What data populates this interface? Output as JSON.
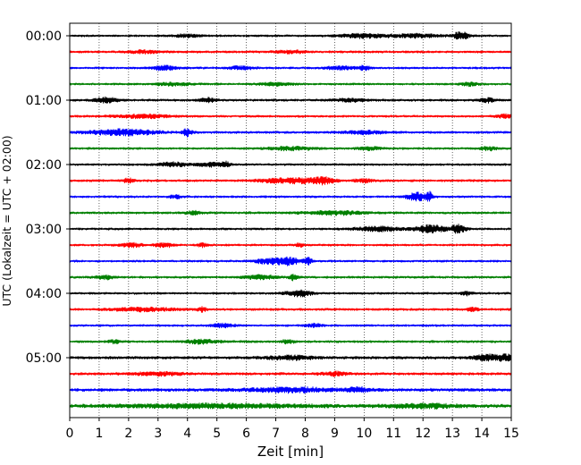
{
  "chart_data": {
    "type": "line",
    "title": "",
    "xlabel": "Zeit  [min]",
    "ylabel": "UTC (Lokalzeit = UTC + 02:00)",
    "xlim": [
      0,
      15
    ],
    "x_ticks": [
      0,
      1,
      2,
      3,
      4,
      5,
      6,
      7,
      8,
      9,
      10,
      11,
      12,
      13,
      14,
      15
    ],
    "y_ticks": [
      {
        "row": 0,
        "label": "00:00"
      },
      {
        "row": 4,
        "label": "01:00"
      },
      {
        "row": 8,
        "label": "02:00"
      },
      {
        "row": 12,
        "label": "03:00"
      },
      {
        "row": 16,
        "label": "04:00"
      },
      {
        "row": 20,
        "label": "05:00"
      }
    ],
    "grid": "vertical-dotted",
    "legend": "none",
    "color_cycle": [
      "#000000",
      "#ff0000",
      "#0000ff",
      "#008000"
    ],
    "series": [
      {
        "start": "00:00",
        "color": "#000000",
        "base": 1.3,
        "bursts": [
          {
            "t": 4,
            "a": 1.8,
            "w": 0.4
          },
          {
            "t": 10,
            "a": 2.2,
            "w": 0.8
          },
          {
            "t": 11.8,
            "a": 1.8,
            "w": 0.8
          },
          {
            "t": 13.3,
            "a": 4.5,
            "w": 0.25
          }
        ]
      },
      {
        "start": "00:15",
        "color": "#ff0000",
        "base": 1.4,
        "bursts": [
          {
            "t": 2.5,
            "a": 1.5,
            "w": 0.5
          },
          {
            "t": 7.5,
            "a": 1.5,
            "w": 0.5
          }
        ]
      },
      {
        "start": "00:30",
        "color": "#0000ff",
        "base": 1.3,
        "bursts": [
          {
            "t": 3.2,
            "a": 2.5,
            "w": 0.4
          },
          {
            "t": 5.8,
            "a": 1.8,
            "w": 0.4
          },
          {
            "t": 9.2,
            "a": 1.8,
            "w": 0.5
          },
          {
            "t": 10,
            "a": 2.2,
            "w": 0.2
          }
        ]
      },
      {
        "start": "00:45",
        "color": "#008000",
        "base": 1.3,
        "bursts": [
          {
            "t": 3.5,
            "a": 1.5,
            "w": 0.6
          },
          {
            "t": 7,
            "a": 1.6,
            "w": 0.5
          },
          {
            "t": 13.6,
            "a": 1.8,
            "w": 0.3
          }
        ]
      },
      {
        "start": "01:00",
        "color": "#000000",
        "base": 1.4,
        "bursts": [
          {
            "t": 1.2,
            "a": 3,
            "w": 0.4
          },
          {
            "t": 4.7,
            "a": 2,
            "w": 0.3
          },
          {
            "t": 9.5,
            "a": 1.7,
            "w": 0.5
          },
          {
            "t": 14.2,
            "a": 2.2,
            "w": 0.3
          }
        ]
      },
      {
        "start": "01:15",
        "color": "#ff0000",
        "base": 1.3,
        "bursts": [
          {
            "t": 2.5,
            "a": 1.8,
            "w": 1
          },
          {
            "t": 14.8,
            "a": 2,
            "w": 0.3
          }
        ]
      },
      {
        "start": "01:30",
        "color": "#0000ff",
        "base": 1.4,
        "bursts": [
          {
            "t": 1.8,
            "a": 3,
            "w": 1.2
          },
          {
            "t": 4,
            "a": 4,
            "w": 0.15
          },
          {
            "t": 10,
            "a": 1.6,
            "w": 0.8
          }
        ]
      },
      {
        "start": "01:45",
        "color": "#008000",
        "base": 1.3,
        "bursts": [
          {
            "t": 7.5,
            "a": 1.8,
            "w": 0.8
          },
          {
            "t": 10.2,
            "a": 1.8,
            "w": 0.4
          },
          {
            "t": 14.2,
            "a": 2,
            "w": 0.3
          }
        ]
      },
      {
        "start": "02:00",
        "color": "#000000",
        "base": 1.3,
        "bursts": [
          {
            "t": 3.5,
            "a": 2.2,
            "w": 0.5
          },
          {
            "t": 4.8,
            "a": 2.2,
            "w": 0.5
          },
          {
            "t": 5.3,
            "a": 2.6,
            "w": 0.12
          }
        ]
      },
      {
        "start": "02:15",
        "color": "#ff0000",
        "base": 1.4,
        "bursts": [
          {
            "t": 2,
            "a": 2,
            "w": 0.2
          },
          {
            "t": 7.5,
            "a": 2.8,
            "w": 1
          },
          {
            "t": 8.6,
            "a": 3.2,
            "w": 0.4
          },
          {
            "t": 10,
            "a": 2,
            "w": 0.3
          }
        ]
      },
      {
        "start": "02:30",
        "color": "#0000ff",
        "base": 1.3,
        "bursts": [
          {
            "t": 3.6,
            "a": 1.8,
            "w": 0.2
          },
          {
            "t": 11.8,
            "a": 4.5,
            "w": 0.35
          },
          {
            "t": 12.2,
            "a": 5.5,
            "w": 0.1
          }
        ]
      },
      {
        "start": "02:45",
        "color": "#008000",
        "base": 1.4,
        "bursts": [
          {
            "t": 4.2,
            "a": 1.6,
            "w": 0.3
          },
          {
            "t": 9,
            "a": 2,
            "w": 1
          }
        ]
      },
      {
        "start": "03:00",
        "color": "#000000",
        "base": 1.3,
        "bursts": [
          {
            "t": 10.5,
            "a": 2.5,
            "w": 0.8
          },
          {
            "t": 12.3,
            "a": 4,
            "w": 0.5
          },
          {
            "t": 13.2,
            "a": 4.2,
            "w": 0.25
          }
        ]
      },
      {
        "start": "03:15",
        "color": "#ff0000",
        "base": 1.3,
        "bursts": [
          {
            "t": 2.1,
            "a": 2,
            "w": 0.4
          },
          {
            "t": 3.2,
            "a": 2.5,
            "w": 0.3
          },
          {
            "t": 4.5,
            "a": 2.2,
            "w": 0.15
          },
          {
            "t": 7.8,
            "a": 2,
            "w": 0.15
          }
        ]
      },
      {
        "start": "03:30",
        "color": "#0000ff",
        "base": 1.3,
        "bursts": [
          {
            "t": 6.7,
            "a": 2.8,
            "w": 0.4
          },
          {
            "t": 7.4,
            "a": 4.2,
            "w": 0.4
          },
          {
            "t": 8.1,
            "a": 4.8,
            "w": 0.12
          }
        ]
      },
      {
        "start": "03:45",
        "color": "#008000",
        "base": 1.4,
        "bursts": [
          {
            "t": 1.2,
            "a": 2,
            "w": 0.3
          },
          {
            "t": 6.5,
            "a": 2.6,
            "w": 0.5
          },
          {
            "t": 7.6,
            "a": 3,
            "w": 0.15
          }
        ]
      },
      {
        "start": "04:00",
        "color": "#000000",
        "base": 1.3,
        "bursts": [
          {
            "t": 7.8,
            "a": 3.5,
            "w": 0.45
          },
          {
            "t": 13.5,
            "a": 1.8,
            "w": 0.2
          }
        ]
      },
      {
        "start": "04:15",
        "color": "#ff0000",
        "base": 1.4,
        "bursts": [
          {
            "t": 2.5,
            "a": 2,
            "w": 1
          },
          {
            "t": 4.5,
            "a": 2.5,
            "w": 0.15
          },
          {
            "t": 13.7,
            "a": 1.8,
            "w": 0.2
          }
        ]
      },
      {
        "start": "04:30",
        "color": "#0000ff",
        "base": 1.3,
        "bursts": [
          {
            "t": 5.2,
            "a": 2,
            "w": 0.4
          },
          {
            "t": 8.3,
            "a": 1.8,
            "w": 0.3
          }
        ]
      },
      {
        "start": "04:45",
        "color": "#008000",
        "base": 1.4,
        "bursts": [
          {
            "t": 1.5,
            "a": 1.8,
            "w": 0.2
          },
          {
            "t": 4.5,
            "a": 2,
            "w": 0.6
          },
          {
            "t": 7.4,
            "a": 2.2,
            "w": 0.2
          }
        ]
      },
      {
        "start": "05:00",
        "color": "#000000",
        "base": 1.7,
        "bursts": [
          {
            "t": 7.5,
            "a": 2,
            "w": 0.8
          },
          {
            "t": 14.2,
            "a": 2.8,
            "w": 0.5
          },
          {
            "t": 14.8,
            "a": 3.5,
            "w": 0.2
          }
        ]
      },
      {
        "start": "05:15",
        "color": "#ff0000",
        "base": 1.6,
        "bursts": [
          {
            "t": 3,
            "a": 1.8,
            "w": 0.8
          },
          {
            "t": 9,
            "a": 2,
            "w": 0.4
          }
        ]
      },
      {
        "start": "05:30",
        "color": "#0000ff",
        "base": 1.9,
        "bursts": [
          {
            "t": 7.5,
            "a": 2.2,
            "w": 1.4
          },
          {
            "t": 9.8,
            "a": 2.2,
            "w": 0.4
          }
        ]
      },
      {
        "start": "05:45",
        "color": "#008000",
        "base": 2,
        "bursts": [
          {
            "t": 5,
            "a": 2,
            "w": 3
          },
          {
            "t": 12,
            "a": 1.9,
            "w": 1.2
          }
        ]
      }
    ]
  }
}
